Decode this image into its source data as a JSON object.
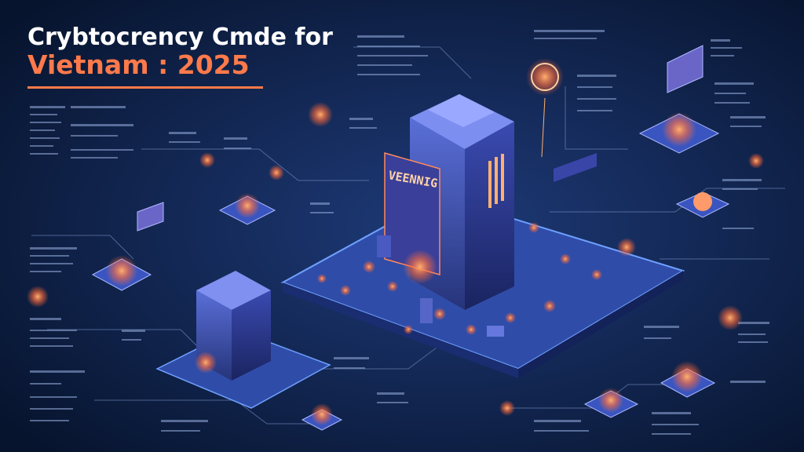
{
  "header": {
    "title_line1": "Crybtocrency Cmde for",
    "title_line2": "Vietnam : 2025"
  },
  "illustration": {
    "tower_sign": "VEENNIG"
  }
}
